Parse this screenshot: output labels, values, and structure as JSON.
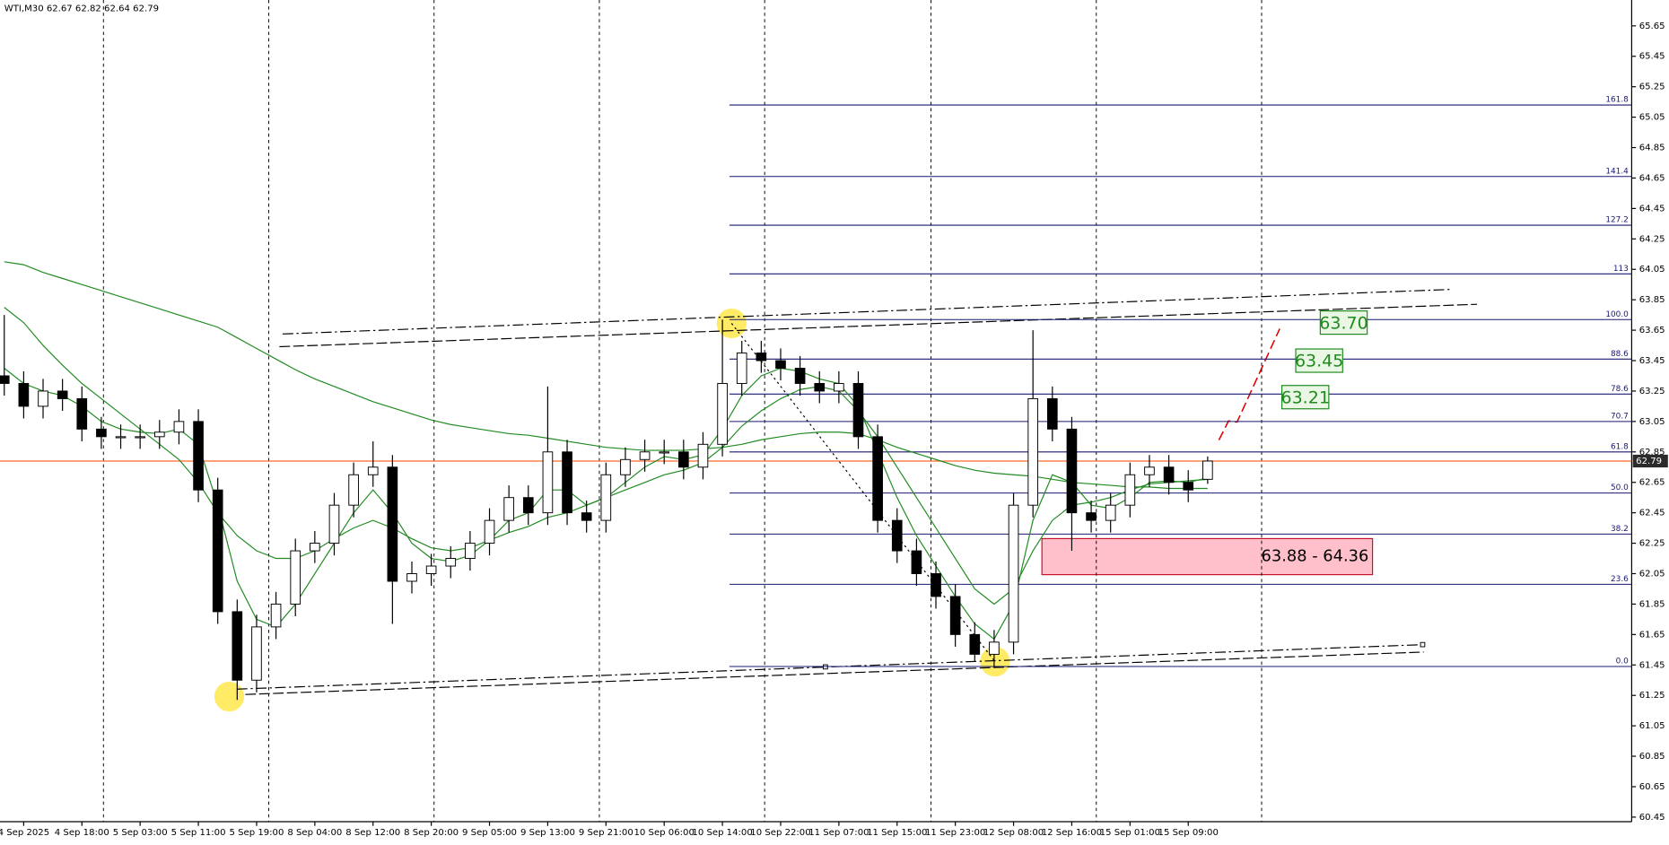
{
  "chart_data": {
    "type": "candlestick",
    "symbol": "WTI,M30",
    "categories": [
      null,
      "4 Sep 2025",
      null,
      null,
      "4 Sep 18:00",
      null,
      null,
      "5 Sep 03:00",
      null,
      null,
      "5 Sep 11:00",
      null,
      null,
      "5 Sep 19:00",
      null,
      null,
      "8 Sep 04:00",
      null,
      null,
      "8 Sep 12:00",
      null,
      null,
      "8 Sep 20:00",
      null,
      null,
      "9 Sep 05:00",
      null,
      null,
      "9 Sep 13:00",
      null,
      null,
      "9 Sep 21:00",
      null,
      null,
      "10 Sep 06:00",
      null,
      null,
      "10 Sep 14:00",
      null,
      null,
      "10 Sep 22:00",
      null,
      null,
      "11 Sep 07:00",
      null,
      null,
      "11 Sep 15:00",
      null,
      null,
      "11 Sep 23:00",
      null,
      null,
      "12 Sep 08:00",
      null,
      null,
      "12 Sep 16:00",
      null,
      null,
      "15 Sep 01:00",
      null,
      null,
      "15 Sep 09:00",
      null
    ],
    "open": [
      63.35,
      63.3,
      63.15,
      63.25,
      63.2,
      63.0,
      62.95,
      62.95,
      62.95,
      62.98,
      63.05,
      62.6,
      61.8,
      61.35,
      61.7,
      61.85,
      62.2,
      62.25,
      62.5,
      62.7,
      62.75,
      62.0,
      62.05,
      62.1,
      62.15,
      62.25,
      62.4,
      62.55,
      62.45,
      62.85,
      62.45,
      62.4,
      62.7,
      62.8,
      62.85,
      62.85,
      62.75,
      62.9,
      63.3,
      63.5,
      63.45,
      63.4,
      63.3,
      63.25,
      63.3,
      62.95,
      62.4,
      62.2,
      62.05,
      61.9,
      61.65,
      61.52,
      61.6,
      62.5,
      63.2,
      63.0,
      62.45,
      62.4,
      62.5,
      62.7,
      62.75,
      62.65,
      62.67
    ],
    "high": [
      63.75,
      63.38,
      63.33,
      63.33,
      63.28,
      63.08,
      63.03,
      63.03,
      63.06,
      63.13,
      63.13,
      62.68,
      61.88,
      61.78,
      61.93,
      62.28,
      62.33,
      62.58,
      62.78,
      62.92,
      62.83,
      62.13,
      62.18,
      62.23,
      62.33,
      62.48,
      62.63,
      62.63,
      63.28,
      62.93,
      62.53,
      62.78,
      62.88,
      62.93,
      62.93,
      62.93,
      62.98,
      63.72,
      63.58,
      63.58,
      63.53,
      63.48,
      63.38,
      63.38,
      63.38,
      63.03,
      62.48,
      62.28,
      62.13,
      61.98,
      61.73,
      61.68,
      62.58,
      63.65,
      63.28,
      63.08,
      62.53,
      62.58,
      62.78,
      62.83,
      62.83,
      62.73,
      62.82
    ],
    "low": [
      63.22,
      63.07,
      63.07,
      63.12,
      62.92,
      62.87,
      62.87,
      62.87,
      62.87,
      62.9,
      62.52,
      61.72,
      61.22,
      61.27,
      61.62,
      61.77,
      62.12,
      62.17,
      62.42,
      62.62,
      61.72,
      61.92,
      61.97,
      62.02,
      62.07,
      62.17,
      62.32,
      62.37,
      62.37,
      62.37,
      62.32,
      62.32,
      62.62,
      62.72,
      62.77,
      62.67,
      62.67,
      62.82,
      63.22,
      63.37,
      63.32,
      63.22,
      63.17,
      63.17,
      62.87,
      62.32,
      62.12,
      61.97,
      61.82,
      61.57,
      61.47,
      61.44,
      61.52,
      62.42,
      62.92,
      62.2,
      62.32,
      62.32,
      62.42,
      62.62,
      62.57,
      62.52,
      62.64
    ],
    "close": [
      63.3,
      63.15,
      63.25,
      63.2,
      63.0,
      62.95,
      62.95,
      62.95,
      62.98,
      63.05,
      62.6,
      61.8,
      61.35,
      61.7,
      61.85,
      62.2,
      62.25,
      62.5,
      62.7,
      62.75,
      62.0,
      62.05,
      62.1,
      62.15,
      62.25,
      62.4,
      62.55,
      62.45,
      62.85,
      62.45,
      62.4,
      62.7,
      62.8,
      62.85,
      62.85,
      62.75,
      62.9,
      63.3,
      63.5,
      63.45,
      63.4,
      63.3,
      63.25,
      63.3,
      62.95,
      62.4,
      62.2,
      62.05,
      61.9,
      61.65,
      61.52,
      61.6,
      62.5,
      63.2,
      63.0,
      62.45,
      62.4,
      62.5,
      62.7,
      62.75,
      62.65,
      62.6,
      62.79
    ],
    "series": [
      {
        "color": "#228b22",
        "values": [
          63.4,
          63.3,
          63.25,
          63.22,
          63.15,
          63.05,
          63.0,
          62.98,
          62.97,
          63.0,
          62.9,
          62.5,
          62.0,
          61.75,
          61.7,
          61.85,
          62.05,
          62.25,
          62.45,
          62.6,
          62.45,
          62.25,
          62.15,
          62.13,
          62.17,
          62.27,
          62.4,
          62.45,
          62.6,
          62.6,
          62.5,
          62.55,
          62.65,
          62.75,
          62.82,
          62.8,
          62.83,
          63.0,
          63.22,
          63.35,
          63.4,
          63.38,
          63.33,
          63.3,
          63.15,
          62.85,
          62.55,
          62.3,
          62.1,
          61.9,
          61.72,
          61.62,
          61.85,
          62.4,
          62.7,
          62.65,
          62.5,
          62.48,
          62.55,
          62.65,
          62.66,
          62.65,
          62.68
        ]
      },
      {
        "color": "#228b22",
        "values": [
          63.8,
          63.7,
          63.55,
          63.42,
          63.3,
          63.2,
          63.1,
          63.0,
          62.9,
          62.8,
          62.65,
          62.45,
          62.3,
          62.2,
          62.15,
          62.15,
          62.2,
          62.28,
          62.35,
          62.4,
          62.35,
          62.28,
          62.22,
          62.2,
          62.22,
          62.27,
          62.32,
          62.36,
          62.42,
          62.45,
          62.5,
          62.55,
          62.6,
          62.65,
          62.7,
          62.73,
          62.78,
          62.88,
          63.02,
          63.12,
          63.2,
          63.26,
          63.28,
          63.25,
          63.12,
          62.95,
          62.75,
          62.55,
          62.35,
          62.15,
          61.95,
          61.85,
          61.95,
          62.2,
          62.4,
          62.5,
          62.52,
          62.55,
          62.6,
          62.64,
          62.65,
          62.66,
          62.67
        ]
      },
      {
        "color": "#228b22",
        "values": [
          64.1,
          64.08,
          64.03,
          63.99,
          63.95,
          63.91,
          63.87,
          63.83,
          63.79,
          63.75,
          63.71,
          63.67,
          63.6,
          63.53,
          63.46,
          63.39,
          63.33,
          63.28,
          63.23,
          63.18,
          63.14,
          63.1,
          63.06,
          63.03,
          63.01,
          62.99,
          62.97,
          62.96,
          62.94,
          62.92,
          62.9,
          62.88,
          62.87,
          62.86,
          62.86,
          62.86,
          62.87,
          62.88,
          62.9,
          62.93,
          62.95,
          62.97,
          62.98,
          62.98,
          62.97,
          62.93,
          62.88,
          62.84,
          62.8,
          62.76,
          62.73,
          62.71,
          62.7,
          62.69,
          62.67,
          62.65,
          62.64,
          62.63,
          62.62,
          62.62,
          62.61,
          62.61,
          62.61
        ]
      }
    ],
    "ylim": [
      60.42,
      65.82
    ],
    "yticks": [
      65.65,
      65.45,
      65.25,
      65.05,
      64.85,
      64.65,
      64.45,
      64.25,
      64.05,
      63.85,
      63.65,
      63.45,
      63.25,
      63.05,
      62.85,
      62.65,
      62.45,
      62.25,
      62.05,
      61.85,
      61.65,
      61.45,
      61.25,
      61.05,
      60.85,
      60.65,
      60.45
    ],
    "current_price": 62.79,
    "fib_levels": [
      {
        "value": 65.13,
        "label": "161.8"
      },
      {
        "value": 64.66,
        "label": "141.4"
      },
      {
        "value": 64.34,
        "label": "127.2"
      },
      {
        "value": 64.02,
        "label": "113"
      },
      {
        "value": 63.72,
        "label": "100.0"
      },
      {
        "value": 63.46,
        "label": "88.6"
      },
      {
        "value": 63.23,
        "label": "78.6"
      },
      {
        "value": 63.05,
        "label": "70.7"
      },
      {
        "value": 62.85,
        "label": "61.8"
      },
      {
        "value": 62.58,
        "label": "50.0"
      },
      {
        "value": 62.31,
        "label": "38.2"
      },
      {
        "value": 61.98,
        "label": "23.6"
      },
      {
        "value": 61.44,
        "label": "0.0"
      }
    ],
    "targets": [
      {
        "value": 63.7,
        "label": "63.70"
      },
      {
        "value": 63.45,
        "label": "63.45"
      },
      {
        "value": 63.21,
        "label": "63.21"
      }
    ],
    "zone_label": "63.88 - 64.36"
  }
}
